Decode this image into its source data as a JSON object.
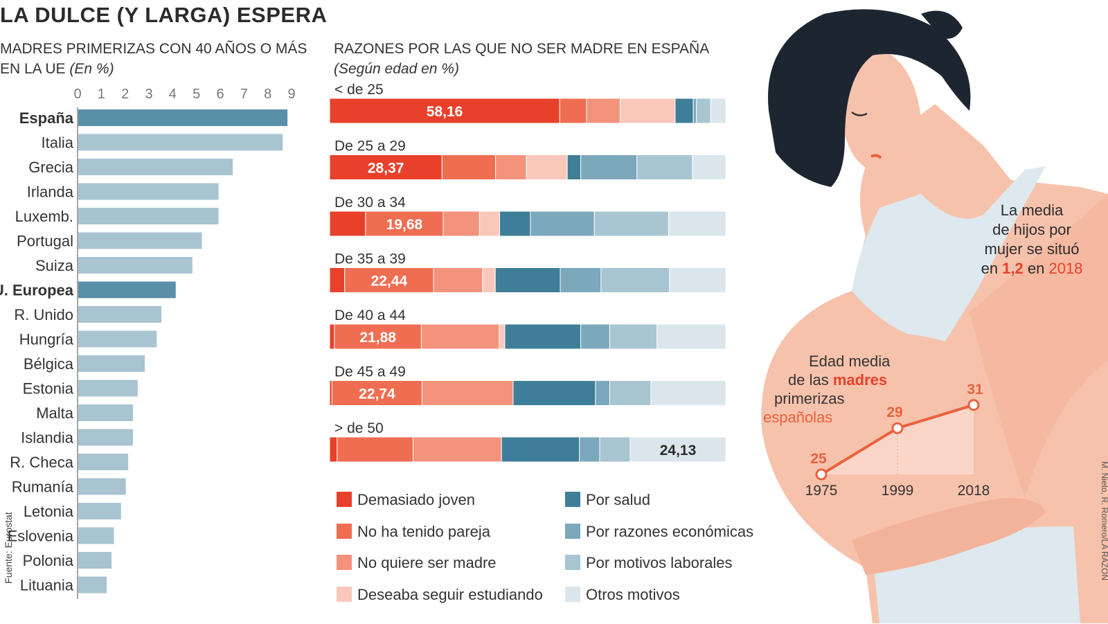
{
  "title": "LA DULCE (Y LARGA) ESPERA",
  "left_subtitle": "MADRES PRIMERIZAS CON 40 AÑOS O MÁS EN LA UE",
  "left_subtitle_unit": "(En %)",
  "right_subtitle": "RAZONES POR LAS QUE NO SER MADRE EN ESPAÑA",
  "right_subtitle_unit": "(Según edad en %)",
  "source": "Fuente: Eurostat",
  "credit": "M. Nieto, R. Romero/LA RAZÓN",
  "colors": {
    "highlight_bar": "#5a8fa8",
    "normal_bar": "#a9c4d1",
    "demasiado_joven": "#e8402a",
    "no_pareja": "#ef6e52",
    "no_quiere": "#f4937c",
    "estudiando": "#f9c8bb",
    "salud": "#3f7e98",
    "economicas": "#7ca8bb",
    "laborales": "#a8c5d2",
    "otros": "#dbe6ec",
    "skin": "#f7c2ac",
    "accent_orange": "#e8623e"
  },
  "chart_data": [
    {
      "type": "bar",
      "orientation": "horizontal",
      "title": "MADRES PRIMERIZAS CON 40 AÑOS O MÁS EN LA UE",
      "unit": "(En %)",
      "xlim": [
        0,
        9
      ],
      "xticks": [
        "0",
        "1",
        "2",
        "3",
        "4",
        "5",
        "6",
        "7",
        "8",
        "9"
      ],
      "categories": [
        "España",
        "Italia",
        "Grecia",
        "Irlanda",
        "Luxemb.",
        "Portugal",
        "Suiza",
        "U. Europea",
        "R. Unido",
        "Hungría",
        "Bélgica",
        "Estonia",
        "Malta",
        "Islandia",
        "R. Checa",
        "Rumanía",
        "Letonia",
        "Eslovenia",
        "Polonia",
        "Lituania"
      ],
      "values": [
        8.8,
        8.6,
        6.5,
        5.9,
        5.9,
        5.2,
        4.8,
        4.1,
        3.5,
        3.3,
        2.8,
        2.5,
        2.3,
        2.3,
        2.1,
        2.0,
        1.8,
        1.5,
        1.4,
        1.2
      ],
      "highlight": [
        "España",
        "U. Europea"
      ]
    },
    {
      "type": "bar",
      "orientation": "horizontal",
      "stacked": true,
      "title": "RAZONES POR LAS QUE NO SER MADRE EN ESPAÑA",
      "unit": "(Según edad en %)",
      "categories": [
        "< de 25",
        "De 25 a 29",
        "De 30 a 34",
        "De 35 a 39",
        "De 40 a 44",
        "De 45 a 49",
        "> de 50"
      ],
      "labeled_series_index": [
        0,
        0,
        1,
        1,
        1,
        1,
        7
      ],
      "labels": [
        "58,16",
        "28,37",
        "19,68",
        "22,44",
        "21,88",
        "22,74",
        "24,13"
      ],
      "series": [
        {
          "name": "Demasiado joven",
          "color_key": "demasiado_joven",
          "values": [
            58.16,
            28.37,
            9.1,
            3.8,
            1.2,
            0.6,
            1.9
          ]
        },
        {
          "name": "No ha tenido pareja",
          "color_key": "no_pareja",
          "values": [
            6.8,
            13.5,
            19.68,
            22.44,
            21.88,
            22.74,
            19.2
          ]
        },
        {
          "name": "No quiere ser madre",
          "color_key": "no_quiere",
          "values": [
            8.5,
            7.8,
            9.2,
            12.4,
            19.6,
            23.0,
            22.3
          ]
        },
        {
          "name": "Deseaba seguir estudiando",
          "color_key": "estudiando",
          "values": [
            13.9,
            10.3,
            5.1,
            3.2,
            1.4,
            0.0,
            0.0
          ]
        },
        {
          "name": "Por salud",
          "color_key": "salud",
          "values": [
            4.6,
            3.4,
            7.8,
            16.4,
            19.1,
            20.8,
            19.7
          ]
        },
        {
          "name": "Por razones económicas",
          "color_key": "economicas",
          "values": [
            0.8,
            14.2,
            16.2,
            10.3,
            7.3,
            3.6,
            5.1
          ]
        },
        {
          "name": "Por motivos laborales",
          "color_key": "laborales",
          "values": [
            3.6,
            14.0,
            18.8,
            17.3,
            11.9,
            10.4,
            7.7
          ]
        },
        {
          "name": "Otros motivos",
          "color_key": "otros",
          "values": [
            3.8,
            8.4,
            14.5,
            14.2,
            17.3,
            18.9,
            24.13
          ]
        }
      ]
    },
    {
      "type": "line",
      "title_parts": [
        "Edad media",
        "de las ",
        "madres",
        "primerizas",
        "españolas"
      ],
      "x": [
        "1975",
        "1999",
        "2018"
      ],
      "values": [
        25,
        29,
        31
      ],
      "value_labels": [
        "25",
        "29",
        "31"
      ]
    }
  ],
  "callout": {
    "lines": [
      "La media",
      "de hijos por",
      "mujer se situó"
    ],
    "prefix": "en ",
    "value": "1,2",
    "middle": " en ",
    "year": "2018"
  }
}
